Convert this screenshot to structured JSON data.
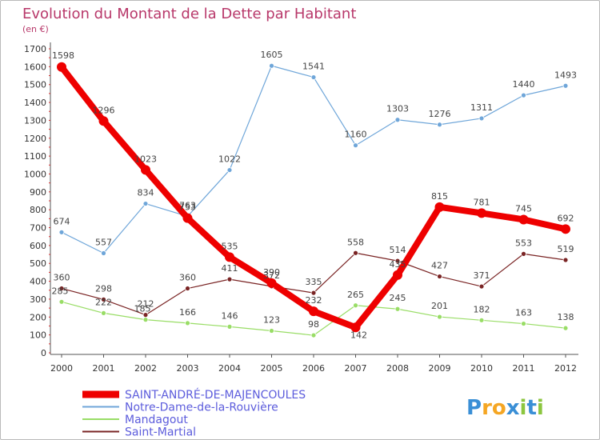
{
  "chart_data": {
    "type": "line",
    "title": "Evolution du Montant de la Dette par Habitant",
    "subtitle": "(en €)",
    "x": [
      2000,
      2001,
      2002,
      2003,
      2004,
      2005,
      2006,
      2007,
      2008,
      2009,
      2010,
      2011,
      2012
    ],
    "ylim": [
      0,
      1700
    ],
    "yticks": [
      0,
      100,
      200,
      300,
      400,
      500,
      600,
      700,
      800,
      900,
      1000,
      1100,
      1200,
      1300,
      1400,
      1500,
      1600,
      1700
    ],
    "grid": false,
    "legend_position": "bottom-left",
    "series": [
      {
        "name": "SAINT-ANDRÉ-DE-MAJENCOULES",
        "color": "#ee0000",
        "values": [
          1598,
          1296,
          1023,
          753,
          535,
          390,
          232,
          142,
          435,
          815,
          781,
          745,
          692
        ]
      },
      {
        "name": "Notre-Dame-de-la-Rouvière",
        "color": "#6fa6d9",
        "values": [
          674,
          557,
          834,
          763,
          1022,
          1605,
          1541,
          1160,
          1303,
          1276,
          1311,
          1440,
          1493
        ]
      },
      {
        "name": "Mandagout",
        "color": "#99dd66",
        "values": [
          285,
          222,
          185,
          166,
          146,
          123,
          98,
          265,
          245,
          201,
          182,
          163,
          138
        ]
      },
      {
        "name": "Saint-Martial",
        "color": "#7a2424",
        "values": [
          360,
          298,
          212,
          360,
          411,
          372,
          335,
          558,
          514,
          427,
          371,
          553,
          519
        ]
      }
    ]
  },
  "logo": {
    "text": "Proxiti",
    "letters": [
      {
        "ch": "P",
        "color": "#3a8fd6"
      },
      {
        "ch": "r",
        "color": "#f5a623"
      },
      {
        "ch": "o",
        "color": "#f5a623"
      },
      {
        "ch": "x",
        "color": "#3a8fd6"
      },
      {
        "ch": "i",
        "color": "#8cc63f"
      },
      {
        "ch": "t",
        "color": "#3a8fd6"
      },
      {
        "ch": "i",
        "color": "#8cc63f"
      }
    ]
  }
}
